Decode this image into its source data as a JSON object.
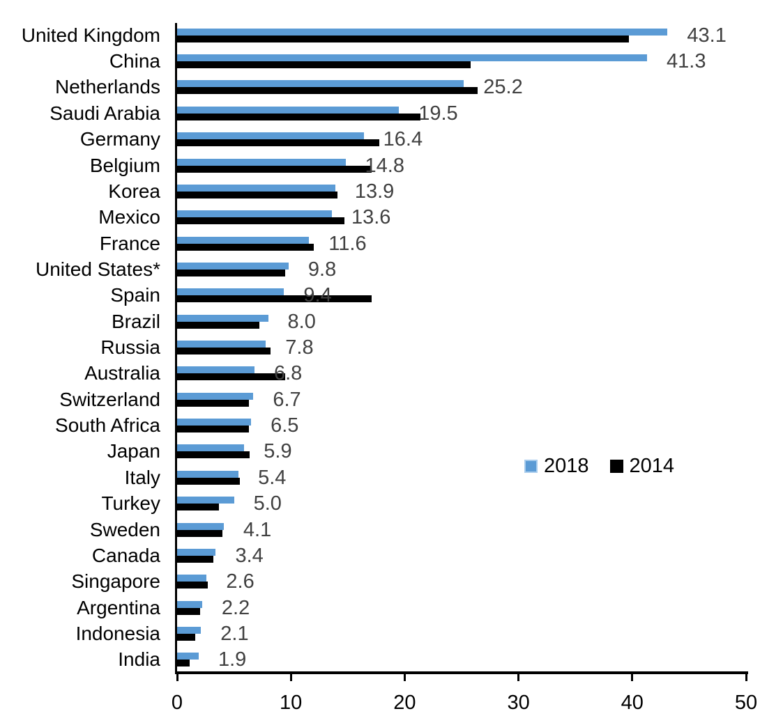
{
  "chart_data": {
    "type": "bar",
    "orientation": "horizontal",
    "title": "",
    "xlabel": "",
    "ylabel": "",
    "xlim": [
      0,
      50
    ],
    "x_ticks": [
      "0",
      "10",
      "20",
      "30",
      "40",
      "50"
    ],
    "grid": false,
    "legend_position": "middle-right",
    "value_label_color": "#404040",
    "categories": [
      "United Kingdom",
      "China",
      "Netherlands",
      "Saudi Arabia",
      "Germany",
      "Belgium",
      "Korea",
      "Mexico",
      "France",
      "United States*",
      "Spain",
      "Brazil",
      "Russia",
      "Australia",
      "Switzerland",
      "South Africa",
      "Japan",
      "Italy",
      "Turkey",
      "Sweden",
      "Canada",
      "Singapore",
      "Argentina",
      "Indonesia",
      "India"
    ],
    "series": [
      {
        "name": "2018",
        "color": "#5B9BD5",
        "border_color": "#A9CDED",
        "data_labels_shown": true,
        "values": [
          43.1,
          41.3,
          25.2,
          19.5,
          16.4,
          14.8,
          13.9,
          13.6,
          11.6,
          9.8,
          9.4,
          8.0,
          7.8,
          6.8,
          6.7,
          6.5,
          5.9,
          5.4,
          5.0,
          4.1,
          3.4,
          2.6,
          2.2,
          2.1,
          1.9
        ]
      },
      {
        "name": "2014",
        "color": "#000000",
        "data_labels_shown": false,
        "values": [
          39.7,
          25.8,
          26.4,
          21.4,
          17.8,
          17.1,
          14.1,
          14.7,
          12.0,
          9.5,
          17.1,
          7.2,
          8.2,
          9.5,
          6.3,
          6.3,
          6.4,
          5.5,
          3.7,
          4.0,
          3.2,
          2.7,
          2.0,
          1.6,
          1.1
        ]
      }
    ],
    "data_labels": [
      "43.1",
      "41.3",
      "25.2",
      "19.5",
      "16.4",
      "14.8",
      "13.9",
      "13.6",
      "11.6",
      "9.8",
      "9.4",
      "8.0",
      "7.8",
      "6.8",
      "6.7",
      "6.5",
      "5.9",
      "5.4",
      "5.0",
      "4.1",
      "3.4",
      "2.6",
      "2.2",
      "2.1",
      "1.9"
    ]
  }
}
